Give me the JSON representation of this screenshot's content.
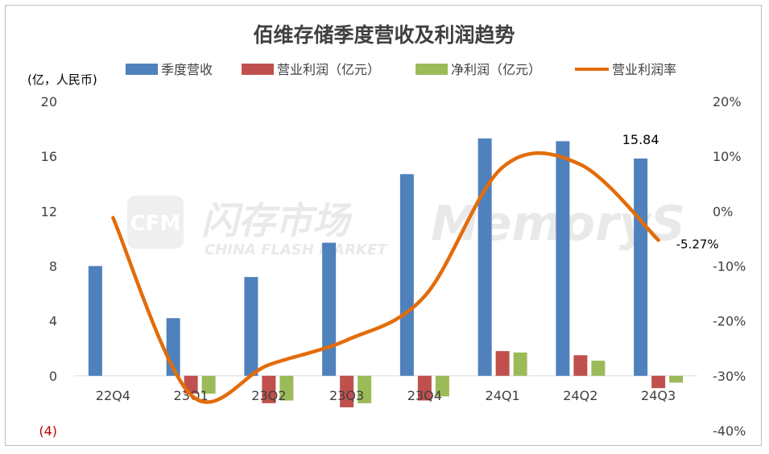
{
  "chart_data": {
    "type": "bar+line",
    "title": "佰维存储季度营收及利润趋势",
    "y_left_unit": "(亿，人民币)",
    "categories": [
      "22Q4",
      "23Q1",
      "23Q2",
      "23Q3",
      "23Q4",
      "24Q1",
      "24Q2",
      "24Q3"
    ],
    "series": [
      {
        "name": "季度营收",
        "type": "bar",
        "axis": "left",
        "color": "#4f81bd",
        "values": [
          8.0,
          4.2,
          7.2,
          9.7,
          14.7,
          17.3,
          17.1,
          15.84
        ]
      },
      {
        "name": "营业利润（亿元）",
        "type": "bar",
        "axis": "left",
        "color": "#c0504d",
        "values": [
          0.0,
          -1.3,
          -2.0,
          -2.3,
          -1.8,
          1.8,
          1.5,
          -0.9
        ]
      },
      {
        "name": "净利润（亿元）",
        "type": "bar",
        "axis": "left",
        "color": "#9bbb59",
        "values": [
          0.0,
          -1.3,
          -1.8,
          -2.0,
          -1.5,
          1.7,
          1.1,
          -0.5
        ]
      },
      {
        "name": "营业利润率",
        "type": "line",
        "axis": "right",
        "color": "#e36c0a",
        "values": [
          -1.2,
          -33.5,
          -28.0,
          -23.5,
          -15.5,
          8.0,
          8.5,
          -5.27
        ]
      }
    ],
    "y_left": {
      "min": -4,
      "max": 20,
      "ticks": [
        "20",
        "16",
        "12",
        "8",
        "4",
        "0",
        "(4)"
      ],
      "tick_values": [
        20,
        16,
        12,
        8,
        4,
        0,
        -4
      ]
    },
    "y_right": {
      "min": -40,
      "max": 20,
      "ticks": [
        "20%",
        "10%",
        "0%",
        "-10%",
        "-20%",
        "-30%",
        "-40%"
      ],
      "tick_values": [
        20,
        10,
        0,
        -10,
        -20,
        -30,
        -40
      ]
    },
    "annotations": {
      "last_revenue": "15.84",
      "last_margin": "-5.27%"
    },
    "legend_position": "top",
    "grid": false,
    "negative_tick_color": "#c00000",
    "watermark": {
      "logo_letters": "CFM",
      "cn_text": "闪存市场",
      "en_text": "CHINA FLASH MARKET",
      "brand": "MemoryS"
    }
  }
}
